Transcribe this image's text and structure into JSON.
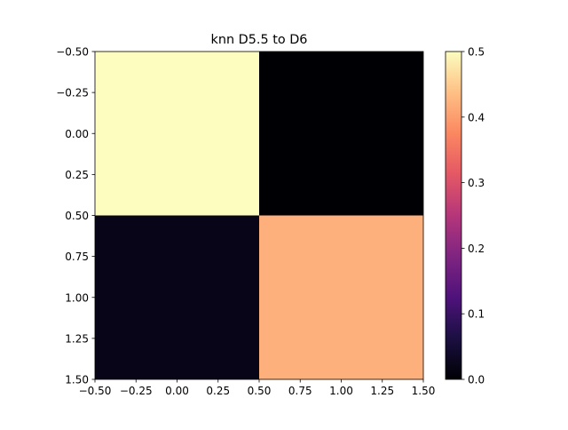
{
  "chart_data": {
    "type": "heatmap",
    "title": "knn D5.5 to D6",
    "xlabel": "",
    "ylabel": "",
    "rows": 2,
    "cols": 2,
    "values": [
      [
        0.5,
        0.0
      ],
      [
        0.02,
        0.42
      ]
    ],
    "xlim": [
      -0.5,
      1.5
    ],
    "ylim": [
      1.5,
      -0.5
    ],
    "x_ticks": [
      -0.5,
      -0.25,
      0.0,
      0.25,
      0.5,
      0.75,
      1.0,
      1.25,
      1.5
    ],
    "x_tick_labels": [
      "−0.50",
      "−0.25",
      "0.00",
      "0.25",
      "0.50",
      "0.75",
      "1.00",
      "1.25",
      "1.50"
    ],
    "y_ticks": [
      -0.5,
      -0.25,
      0.0,
      0.25,
      0.5,
      0.75,
      1.0,
      1.25,
      1.5
    ],
    "y_tick_labels": [
      "−0.50",
      "−0.25",
      "0.00",
      "0.25",
      "0.50",
      "0.75",
      "1.00",
      "1.25",
      "1.50"
    ],
    "colormap": "magma",
    "colorbar": {
      "vmin": 0.0,
      "vmax": 0.5,
      "ticks": [
        0.0,
        0.1,
        0.2,
        0.3,
        0.4,
        0.5
      ],
      "tick_labels": [
        "0.0",
        "0.1",
        "0.2",
        "0.3",
        "0.4",
        "0.5"
      ]
    },
    "grid": false
  }
}
